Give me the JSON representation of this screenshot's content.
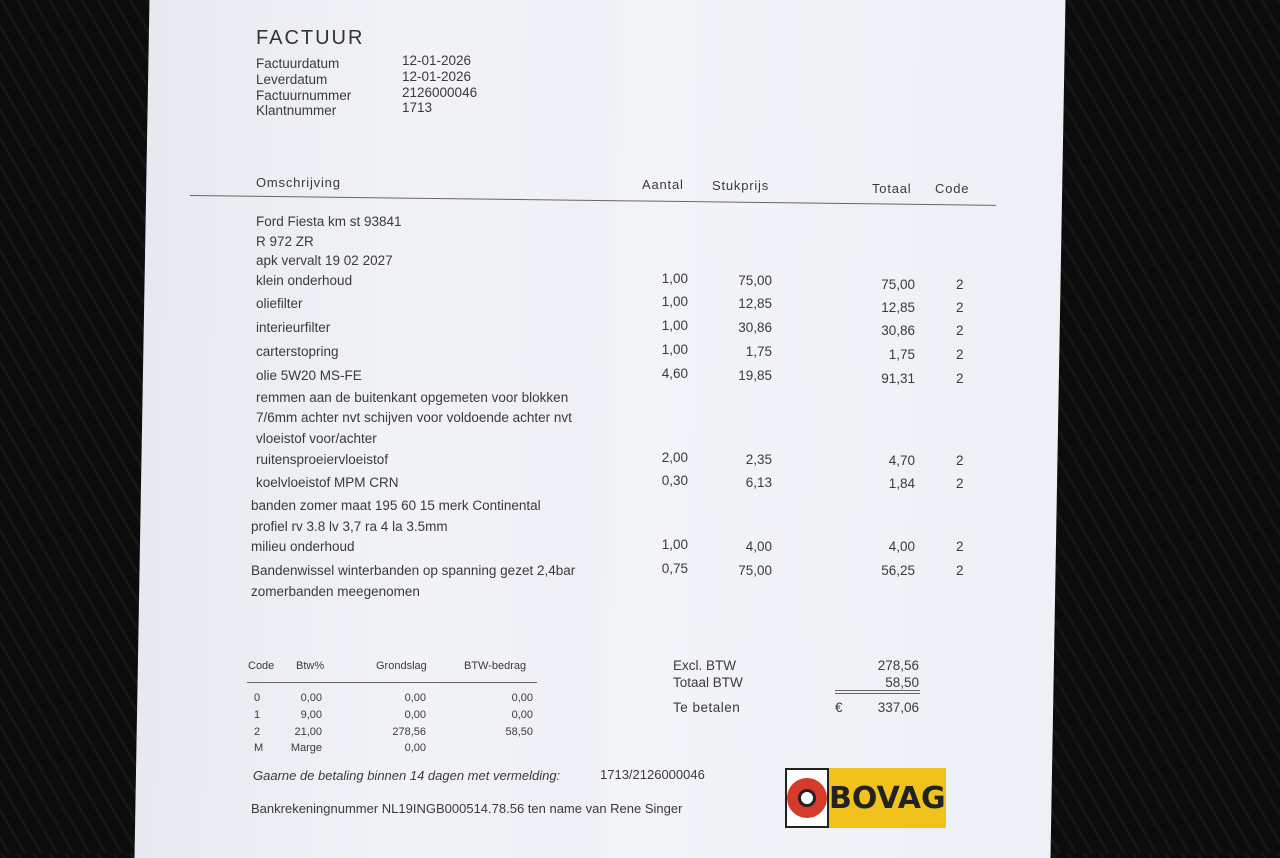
{
  "title": "FACTUUR",
  "meta": [
    {
      "label": "Factuurdatum",
      "value": "12-01-2026"
    },
    {
      "label": "Leverdatum",
      "value": "12-01-2026"
    },
    {
      "label": "Factuurnummer",
      "value": "2126000046"
    },
    {
      "label": "Klantnummer",
      "value": "1713"
    }
  ],
  "columns": {
    "desc": "Omschrijving",
    "qty": "Aantal",
    "price": "Stukprijs",
    "total": "Totaal",
    "code": "Code"
  },
  "rows": [
    {
      "desc": "Ford Fiesta  km st 93841"
    },
    {
      "desc": "R 972 ZR"
    },
    {
      "desc": "apk vervalt 19 02 2027"
    },
    {
      "desc": "klein onderhoud",
      "qty": "1,00",
      "price": "75,00",
      "total": "75,00",
      "code": "2"
    },
    {
      "desc": "oliefilter",
      "qty": "1,00",
      "price": "12,85",
      "total": "12,85",
      "code": "2"
    },
    {
      "desc": "interieurfilter",
      "qty": "1,00",
      "price": "30,86",
      "total": "30,86",
      "code": "2"
    },
    {
      "desc": "carterstopring",
      "qty": "1,00",
      "price": "1,75",
      "total": "1,75",
      "code": "2"
    },
    {
      "desc": "olie 5W20 MS-FE",
      "qty": "4,60",
      "price": "19,85",
      "total": "91,31",
      "code": "2"
    },
    {
      "desc": "remmen aan de buitenkant opgemeten voor blokken"
    },
    {
      "desc": "7/6mm achter nvt schijven voor voldoende achter  nvt"
    },
    {
      "desc": "vloeistof voor/achter"
    },
    {
      "desc": "ruitensproeiervloeistof",
      "qty": "2,00",
      "price": "2,35",
      "total": "4,70",
      "code": "2"
    },
    {
      "desc": "koelvloeistof MPM CRN",
      "qty": "0,30",
      "price": "6,13",
      "total": "1,84",
      "code": "2"
    },
    {
      "desc": "banden zomer maat 195 60 15 merk Continental"
    },
    {
      "desc": "profiel rv 3.8 lv 3,7 ra 4 la 3.5mm"
    },
    {
      "desc": "milieu onderhoud",
      "qty": "1,00",
      "price": "4,00",
      "total": "4,00",
      "code": "2"
    },
    {
      "desc": "Bandenwissel  winterbanden op spanning gezet 2,4bar",
      "qty": "0,75",
      "price": "75,00",
      "total": "56,25",
      "code": "2"
    },
    {
      "desc": "zomerbanden  meegenomen"
    }
  ],
  "vat_table": {
    "headers": [
      "Code",
      "Btw%",
      "Grondslag",
      "BTW-bedrag"
    ],
    "rows": [
      [
        "0",
        "0,00",
        "0,00",
        "0,00"
      ],
      [
        "1",
        "9,00",
        "0,00",
        "0,00"
      ],
      [
        "2",
        "21,00",
        "278,56",
        "58,50"
      ],
      [
        "M",
        "Marge",
        "0,00",
        ""
      ]
    ]
  },
  "totals": {
    "excl_label": "Excl. BTW",
    "excl_value": "278,56",
    "btw_label": "Totaal BTW",
    "btw_value": "58,50",
    "pay_label": "Te betalen",
    "currency": "€",
    "pay_value": "337,06"
  },
  "footer": {
    "payment_note": "Gaarne de betaling binnen 14 dagen met vermelding:",
    "reference": "1713/2126000046",
    "bank": "Bankrekeningnummer NL19INGB000514.78.56 ten name van Rene Singer"
  },
  "logo": {
    "text": "BOVAG",
    "colors": {
      "yellow": "#f2c21c",
      "red": "#d63a2a"
    }
  }
}
